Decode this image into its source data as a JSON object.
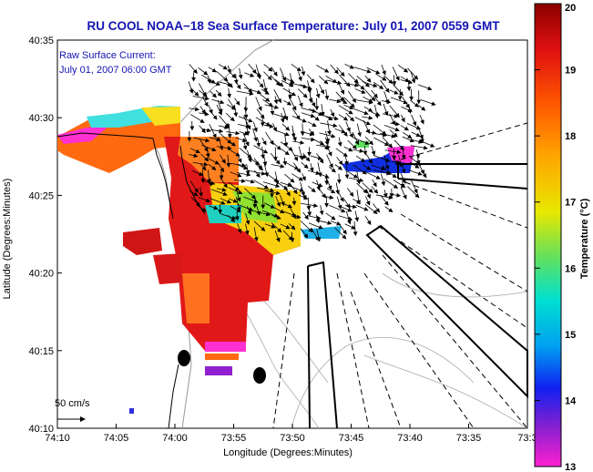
{
  "chart_data": {
    "type": "heatmap",
    "title": "RU COOL   NOAA−18   Sea Surface Temperature:   July 01, 2007 0559 GMT",
    "annotation": [
      "Raw Surface Current:",
      "July 01, 2007 06:00 GMT"
    ],
    "xlabel": "Longitude (Degrees:Minutes)",
    "ylabel": "Latitude (Degrees:Minutes)",
    "x_ticks": [
      "74:10",
      "74:05",
      "74:00",
      "73:55",
      "73:50",
      "73:45",
      "73:40",
      "73:35",
      "73:3"
    ],
    "y_ticks": [
      "40:35",
      "40:30",
      "40:25",
      "40:20",
      "40:15",
      "40:10"
    ],
    "xlim_deg_west": [
      74.1667,
      73.5
    ],
    "ylim_deg_north": [
      40.1667,
      40.5833
    ],
    "colorbar": {
      "label": "Temperature (°C)",
      "range": [
        13,
        20
      ],
      "ticks": [
        "20",
        "19",
        "18",
        "17",
        "16",
        "15",
        "14",
        "13"
      ]
    },
    "scale_arrow_label": "50 cm/s",
    "sst_patches": [
      {
        "lon": 74.05,
        "lat": 40.485,
        "temp": 18.6
      },
      {
        "lon": 74.0,
        "lat": 40.46,
        "temp": 19.5
      },
      {
        "lon": 73.96,
        "lat": 40.44,
        "temp": 19.7
      },
      {
        "lon": 73.92,
        "lat": 40.42,
        "temp": 18.8
      },
      {
        "lon": 73.88,
        "lat": 40.4,
        "temp": 17.6
      },
      {
        "lon": 73.96,
        "lat": 40.37,
        "temp": 19.8
      },
      {
        "lon": 73.95,
        "lat": 40.31,
        "temp": 19.9
      },
      {
        "lon": 73.72,
        "lat": 40.46,
        "temp": 14.0
      }
    ],
    "current_vector_field": "Raw surface current vectors over the lower bay / apex region, predominantly directed southwest"
  }
}
